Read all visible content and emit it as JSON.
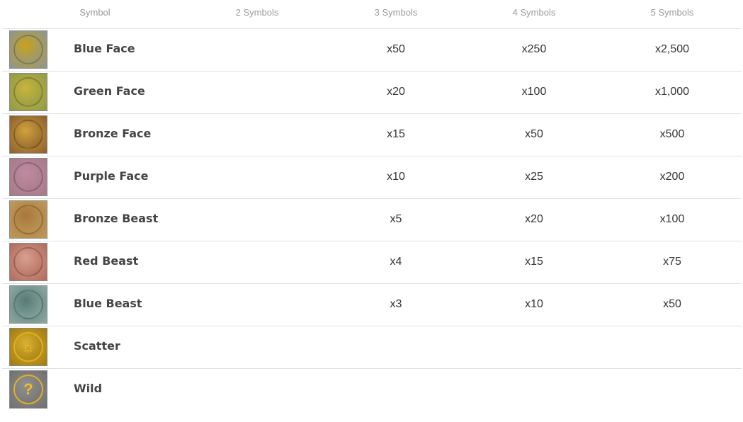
{
  "headers": [
    "Symbol",
    "2 Symbols",
    "3 Symbols",
    "4 Symbols",
    "5 Symbols"
  ],
  "rows": [
    {
      "name": "Blue Face",
      "icon": "blue-face-icon",
      "bg": "#8a9694",
      "fg": "#c9a21a",
      "p2": "",
      "p3": "x50",
      "p4": "x250",
      "p5": "x2,500"
    },
    {
      "name": "Green Face",
      "icon": "green-face-icon",
      "bg": "#8f9a4a",
      "fg": "#c8b43a",
      "p2": "",
      "p3": "x20",
      "p4": "x100",
      "p5": "x1,000"
    },
    {
      "name": "Bronze Face",
      "icon": "bronze-face-icon",
      "bg": "#8a5e2e",
      "fg": "#d0a23c",
      "p2": "",
      "p3": "x15",
      "p4": "x50",
      "p5": "x500"
    },
    {
      "name": "Purple Face",
      "icon": "purple-face-icon",
      "bg": "#a57a8a",
      "fg": "#c08aa0",
      "p2": "",
      "p3": "x10",
      "p4": "x25",
      "p5": "x200"
    },
    {
      "name": "Bronze Beast",
      "icon": "bronze-beast-icon",
      "bg": "#c09a5a",
      "fg": "#a8783a",
      "p2": "",
      "p3": "x5",
      "p4": "x20",
      "p5": "x100"
    },
    {
      "name": "Red Beast",
      "icon": "red-beast-icon",
      "bg": "#b06a5a",
      "fg": "#d8a090",
      "p2": "",
      "p3": "x4",
      "p4": "x15",
      "p5": "x75"
    },
    {
      "name": "Blue Beast",
      "icon": "blue-beast-icon",
      "bg": "#8aaaa2",
      "fg": "#5a7a76",
      "p2": "",
      "p3": "x3",
      "p4": "x10",
      "p5": "x50"
    },
    {
      "name": "Scatter",
      "icon": "scatter-icon",
      "bg": "#a07a10",
      "fg": "#d8b030",
      "p2": "",
      "p3": "",
      "p4": "",
      "p5": ""
    },
    {
      "name": "Wild",
      "icon": "wild-question-icon",
      "bg": "#707070",
      "fg": "#909090",
      "p2": "",
      "p3": "",
      "p4": "",
      "p5": ""
    }
  ]
}
